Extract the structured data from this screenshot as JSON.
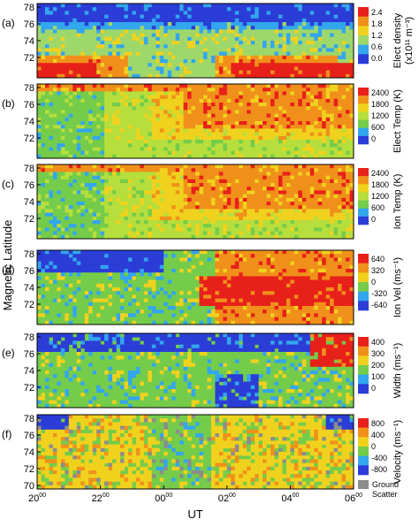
{
  "chart_data": {
    "type": "heatmap",
    "x_axis": {
      "label": "UT",
      "ticks": [
        {
          "hour": "20",
          "sup": "00"
        },
        {
          "hour": "22",
          "sup": "00"
        },
        {
          "hour": "00",
          "sup": "00"
        },
        {
          "hour": "02",
          "sup": "00"
        },
        {
          "hour": "04",
          "sup": "00"
        },
        {
          "hour": "06",
          "sup": "00"
        }
      ],
      "range_hours_ut": [
        20,
        30
      ]
    },
    "y_axis_label": "Magnetic Latitude",
    "panels": [
      {
        "letter": "(a)",
        "quantity": "elect_density",
        "ylim": [
          70,
          78
        ],
        "yticks": [
          "78",
          "76",
          "74",
          "72"
        ],
        "colorbar_label": [
          "Elect density",
          "(x10¹¹ m⁻³)"
        ],
        "colorbar_ticks": [
          "2.4",
          "1.8",
          "1.2",
          "0.6",
          "0.0"
        ],
        "colors": [
          "#2b3dd6",
          "#33a6ee",
          "#9fd86a",
          "#f0d21e",
          "#f0901a",
          "#e8201a"
        ],
        "background": "#2b3dd6"
      },
      {
        "letter": "(b)",
        "quantity": "elect_temp",
        "ylim": [
          70,
          78
        ],
        "yticks": [
          "78",
          "76",
          "74",
          "72"
        ],
        "colorbar_label": [
          "Elect Temp (K)"
        ],
        "colorbar_ticks": [
          "2400",
          "1800",
          "1200",
          "600",
          "0"
        ],
        "colors": [
          "#2b3dd6",
          "#33a6ee",
          "#74cc4a",
          "#b6de3c",
          "#f0d21e",
          "#f0901a",
          "#e8201a"
        ],
        "background": "#74cc4a"
      },
      {
        "letter": "(c)",
        "quantity": "ion_temp",
        "ylim": [
          70,
          78
        ],
        "yticks": [
          "78",
          "76",
          "74",
          "72"
        ],
        "colorbar_label": [
          "Ion Temp (K)"
        ],
        "colorbar_ticks": [
          "2400",
          "1800",
          "1200",
          "600",
          "0"
        ],
        "colors": [
          "#2b3dd6",
          "#33a6ee",
          "#74cc4a",
          "#b6de3c",
          "#f0d21e",
          "#f0901a",
          "#e8201a"
        ],
        "background": "#74cc4a"
      },
      {
        "letter": "(d)",
        "quantity": "ion_vel",
        "ylim": [
          70,
          78
        ],
        "yticks": [
          "78",
          "76",
          "74",
          "72"
        ],
        "colorbar_label": [
          "Ion Vel (ms⁻¹)"
        ],
        "colorbar_ticks": [
          "640",
          "320",
          "0",
          "-320",
          "-640"
        ],
        "colors": [
          "#2b3dd6",
          "#33a6ee",
          "#74cc4a",
          "#f0d21e",
          "#f0901a",
          "#e8201a"
        ],
        "background": "#74cc4a"
      },
      {
        "letter": "(e)",
        "quantity": "width",
        "ylim": [
          70,
          78
        ],
        "yticks": [
          "78",
          "76",
          "74",
          "72"
        ],
        "colorbar_label": [
          "Width (ms⁻¹)"
        ],
        "colorbar_ticks": [
          "400",
          "300",
          "200",
          "100",
          "0"
        ],
        "colors": [
          "#2b3dd6",
          "#33a6ee",
          "#74cc4a",
          "#f0d21e",
          "#f0901a",
          "#e8201a"
        ],
        "background": "#74cc4a"
      },
      {
        "letter": "(f)",
        "quantity": "velocity",
        "ylim": [
          70,
          78
        ],
        "yticks": [
          "78",
          "76",
          "74",
          "72",
          "70"
        ],
        "colorbar_label": [
          "Velocity (ms⁻¹)"
        ],
        "colorbar_ticks": [
          "800",
          "400",
          "0",
          "-400",
          "-800"
        ],
        "colors": [
          "#2b3dd6",
          "#33a6ee",
          "#74cc4a",
          "#f0d21e",
          "#f0901a",
          "#e8201a"
        ],
        "background": "#74cc4a",
        "extra_legend": {
          "label": "Ground Scatter",
          "color": "#8c8c8c"
        }
      }
    ]
  }
}
